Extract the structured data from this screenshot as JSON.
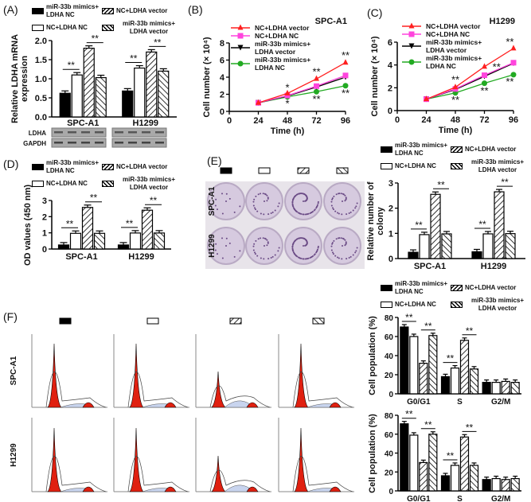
{
  "panel_labels": {
    "A": "(A)",
    "B": "(B)",
    "C": "(C)",
    "D": "(D)",
    "E": "(E)",
    "F": "(F)"
  },
  "legend_groups": [
    "miR-33b mimics+ LDHA NC",
    "NC+LDHA NC",
    "NC+LDHA vector",
    "miR-33b mimics+ LDHA vector"
  ],
  "colors": {
    "red": "#ff2020",
    "magenta": "#ff44dd",
    "black": "#000000",
    "green": "#22aa22",
    "plate": "#cdbfd8",
    "peak": "#e02010"
  },
  "blot": {
    "labels": [
      "LDHA",
      "GAPDH"
    ],
    "cells": [
      "SPC-A1",
      "H1299"
    ]
  },
  "plates": {
    "rows": [
      "SPC-A1",
      "H1299"
    ]
  },
  "flow": {
    "rows": [
      "SPC-A1",
      "H1299"
    ]
  },
  "chart_data": [
    {
      "id": "A",
      "type": "bar",
      "ylabel": "Relative LDHA mRNA expression",
      "categories": [
        "SPC-A1",
        "H1299"
      ],
      "ylim": [
        0,
        2
      ],
      "yticks": [
        "0.0",
        "0.5",
        "1.0",
        "1.5",
        "2.0"
      ],
      "ytick_values": [
        0,
        0.5,
        1,
        1.5,
        2
      ],
      "series": [
        {
          "name": "miR-33b mimics+ LDHA NC",
          "values": [
            0.62,
            0.68
          ]
        },
        {
          "name": "NC+LDHA NC",
          "values": [
            1.1,
            1.28
          ]
        },
        {
          "name": "NC+LDHA vector",
          "values": [
            1.8,
            1.7
          ]
        },
        {
          "name": "miR-33b mimics+ LDHA vector",
          "values": [
            1.03,
            1.2
          ]
        }
      ],
      "significance": [
        {
          "pair": [
            0,
            1
          ],
          "label": "**"
        },
        {
          "pair": [
            2,
            3
          ],
          "label": "**"
        }
      ]
    },
    {
      "id": "B",
      "type": "line",
      "title": "SPC-A1",
      "xlabel": "Time (h)",
      "ylabel": "Cell number (× 10⁴)",
      "xlim": [
        0,
        96
      ],
      "xticks": [
        0,
        24,
        48,
        72,
        96
      ],
      "ylim": [
        0,
        8
      ],
      "yticks": [
        0,
        2,
        4,
        6,
        8
      ],
      "x": [
        24,
        48,
        72,
        96
      ],
      "series": [
        {
          "name": "NC+LDHA vector",
          "marker": "triangle-up",
          "color": "#ff2020",
          "values": [
            1,
            2.1,
            3.8,
            5.7
          ]
        },
        {
          "name": "NC+LDHA NC",
          "marker": "square",
          "color": "#ff44dd",
          "values": [
            1,
            1.85,
            2.95,
            4.2
          ]
        },
        {
          "name": "miR-33b mimics+ LDHA vector",
          "marker": "triangle-down",
          "color": "#000000",
          "values": [
            1,
            1.8,
            2.85,
            4.0
          ]
        },
        {
          "name": "miR-33b mimics+ LDHA NC",
          "marker": "circle",
          "color": "#22aa22",
          "values": [
            1,
            1.7,
            2.3,
            3.0
          ]
        }
      ],
      "annotations": [
        {
          "x": 48,
          "y": 2.75,
          "label": "*"
        },
        {
          "x": 48,
          "y": 0.9,
          "label": "*"
        },
        {
          "x": 72,
          "y": 4.6,
          "label": "**"
        },
        {
          "x": 72,
          "y": 1.4,
          "label": "**"
        },
        {
          "x": 96,
          "y": 6.5,
          "label": "**"
        },
        {
          "x": 96,
          "y": 2.1,
          "label": "**"
        }
      ]
    },
    {
      "id": "C",
      "type": "line",
      "title": "H1299",
      "xlabel": "Time (h)",
      "ylabel": "Cell number (× 10⁴)",
      "xlim": [
        0,
        96
      ],
      "xticks": [
        0,
        24,
        48,
        72,
        96
      ],
      "ylim": [
        0,
        6
      ],
      "yticks": [
        0,
        2,
        4,
        6
      ],
      "x": [
        24,
        48,
        72,
        96
      ],
      "series": [
        {
          "name": "NC+LDHA vector",
          "marker": "triangle-up",
          "color": "#ff2020",
          "values": [
            1,
            2.05,
            3.85,
            5.45
          ]
        },
        {
          "name": "NC+LDHA NC",
          "marker": "square",
          "color": "#ff44dd",
          "values": [
            1,
            1.9,
            3.1,
            4.2
          ]
        },
        {
          "name": "miR-33b mimics+ LDHA vector",
          "marker": "triangle-down",
          "color": "#000000",
          "values": [
            1,
            1.85,
            3.0,
            4.15
          ]
        },
        {
          "name": "miR-33b mimics+ LDHA NC",
          "marker": "circle",
          "color": "#22aa22",
          "values": [
            1,
            1.55,
            2.4,
            3.15
          ]
        }
      ],
      "annotations": [
        {
          "x": 48,
          "y": 2.7,
          "label": "**"
        },
        {
          "x": 48,
          "y": 0.9,
          "label": "**"
        },
        {
          "x": 82,
          "y": 3.8,
          "label": "**"
        },
        {
          "x": 72,
          "y": 1.7,
          "label": "**"
        },
        {
          "x": 93,
          "y": 6.0,
          "label": "**"
        },
        {
          "x": 93,
          "y": 2.5,
          "label": "**"
        }
      ]
    },
    {
      "id": "D",
      "type": "bar",
      "ylabel": "OD values (450 nm)",
      "categories": [
        "SPC-A1",
        "H1299"
      ],
      "ylim": [
        0,
        3
      ],
      "yticks": [
        "0",
        "1",
        "2",
        "3"
      ],
      "ytick_values": [
        0,
        1,
        2,
        3
      ],
      "series": [
        {
          "name": "miR-33b mimics+ LDHA NC",
          "values": [
            0.25,
            0.25
          ]
        },
        {
          "name": "NC+LDHA NC",
          "values": [
            0.97,
            0.99
          ]
        },
        {
          "name": "NC+LDHA vector",
          "values": [
            2.57,
            2.4
          ]
        },
        {
          "name": "miR-33b mimics+ LDHA vector",
          "values": [
            0.97,
            0.99
          ]
        }
      ],
      "significance": [
        {
          "pair": [
            0,
            1
          ],
          "label": "**"
        },
        {
          "pair": [
            2,
            3
          ],
          "label": "**"
        }
      ]
    },
    {
      "id": "E",
      "type": "bar",
      "ylabel": "Relative number of colony",
      "categories": [
        "SPC-A1",
        "H1299"
      ],
      "ylim": [
        0,
        3
      ],
      "yticks": [
        "0",
        "1",
        "2",
        "3"
      ],
      "ytick_values": [
        0,
        1,
        2,
        3
      ],
      "series": [
        {
          "name": "miR-33b mimics+ LDHA NC",
          "values": [
            0.25,
            0.27
          ]
        },
        {
          "name": "NC+LDHA NC",
          "values": [
            0.95,
            0.98
          ]
        },
        {
          "name": "NC+LDHA vector",
          "values": [
            2.55,
            2.65
          ]
        },
        {
          "name": "miR-33b mimics+ LDHA vector",
          "values": [
            0.98,
            0.99
          ]
        }
      ],
      "significance": [
        {
          "pair": [
            0,
            1
          ],
          "label": "**"
        },
        {
          "pair": [
            2,
            3
          ],
          "label": "**"
        }
      ]
    },
    {
      "id": "F1",
      "type": "bar",
      "ylabel": "Cell population (%)",
      "categories": [
        "G0/G1",
        "S",
        "G2/M"
      ],
      "ylim": [
        0,
        80
      ],
      "yticks": [
        "0",
        "20",
        "40",
        "60",
        "80"
      ],
      "ytick_values": [
        0,
        20,
        40,
        60,
        80
      ],
      "series": [
        {
          "name": "miR-33b mimics+ LDHA NC",
          "values": [
            70,
            18,
            12
          ]
        },
        {
          "name": "NC+LDHA NC",
          "values": [
            60,
            27,
            12
          ]
        },
        {
          "name": "NC+LDHA vector",
          "values": [
            32,
            56,
            13
          ]
        },
        {
          "name": "miR-33b mimics+ LDHA vector",
          "values": [
            61,
            26,
            12
          ]
        }
      ],
      "significance": [
        {
          "group": 0,
          "pair": [
            0,
            1
          ],
          "label": "**"
        },
        {
          "group": 0,
          "pair": [
            2,
            3
          ],
          "label": "**"
        },
        {
          "group": 1,
          "pair": [
            0,
            1
          ],
          "label": "**"
        },
        {
          "group": 1,
          "pair": [
            2,
            3
          ],
          "label": "**"
        }
      ]
    },
    {
      "id": "F2",
      "type": "bar",
      "ylabel": "Cell population (%)",
      "categories": [
        "G0/G1",
        "S",
        "G2/M"
      ],
      "ylim": [
        0,
        80
      ],
      "yticks": [
        "0",
        "20",
        "40",
        "60",
        "80"
      ],
      "ytick_values": [
        0,
        20,
        40,
        60,
        80
      ],
      "series": [
        {
          "name": "miR-33b mimics+ LDHA NC",
          "values": [
            71,
            16,
            12
          ]
        },
        {
          "name": "NC+LDHA NC",
          "values": [
            59,
            27,
            13
          ]
        },
        {
          "name": "NC+LDHA vector",
          "values": [
            30,
            57,
            12
          ]
        },
        {
          "name": "miR-33b mimics+ LDHA vector",
          "values": [
            60,
            27,
            13
          ]
        }
      ],
      "significance": [
        {
          "group": 0,
          "pair": [
            0,
            1
          ],
          "label": "**"
        },
        {
          "group": 0,
          "pair": [
            2,
            3
          ],
          "label": "**"
        },
        {
          "group": 1,
          "pair": [
            0,
            1
          ],
          "label": "**"
        },
        {
          "group": 1,
          "pair": [
            2,
            3
          ],
          "label": "**"
        }
      ]
    }
  ]
}
